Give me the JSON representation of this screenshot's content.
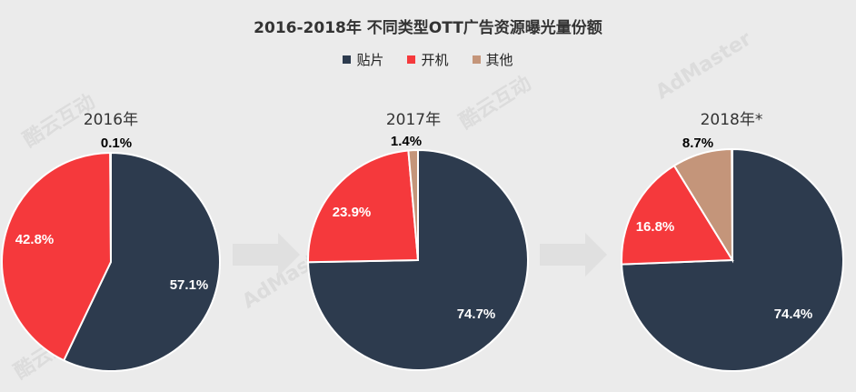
{
  "title": "2016-2018年 不同类型OTT广告资源曝光量份额",
  "colors": {
    "贴片": "#2d3b4e",
    "开机": "#f5393c",
    "其他": "#c4957a"
  },
  "watermarks": {
    "kuyun": "酷云互动",
    "admaster": "AdMaster"
  },
  "chart_data": {
    "type": "pie",
    "legend": [
      "贴片",
      "开机",
      "其他"
    ],
    "legend_position": "top-center",
    "charts": [
      {
        "title": "2016年",
        "slices": [
          {
            "name": "贴片",
            "value": 57.1,
            "label": "57.1%"
          },
          {
            "name": "开机",
            "value": 42.8,
            "label": "42.8%"
          },
          {
            "name": "其他",
            "value": 0.1,
            "label": "0.1%"
          }
        ]
      },
      {
        "title": "2017年",
        "slices": [
          {
            "name": "贴片",
            "value": 74.7,
            "label": "74.7%"
          },
          {
            "name": "开机",
            "value": 23.9,
            "label": "23.9%"
          },
          {
            "name": "其他",
            "value": 1.4,
            "label": "1.4%"
          }
        ]
      },
      {
        "title": "2018年*",
        "slices": [
          {
            "name": "贴片",
            "value": 74.4,
            "label": "74.4%"
          },
          {
            "name": "开机",
            "value": 16.8,
            "label": "16.8%"
          },
          {
            "name": "其他",
            "value": 8.7,
            "label": "8.7%"
          }
        ]
      }
    ]
  }
}
